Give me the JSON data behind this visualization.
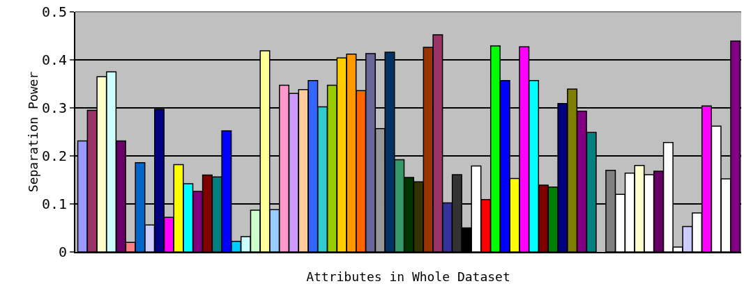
{
  "chart_data": {
    "type": "bar",
    "xlabel": "Attributes in Whole Dataset",
    "ylabel": "Separation Power",
    "categories": [
      null,
      null,
      null,
      null,
      null,
      null,
      null,
      null,
      null,
      null,
      null,
      null,
      null,
      null,
      null,
      null,
      null,
      null,
      null,
      null,
      null,
      null,
      null,
      null,
      null,
      null,
      null,
      null,
      null,
      null,
      null,
      null,
      null,
      null,
      null,
      null,
      null,
      null,
      null,
      null,
      null,
      null,
      null,
      null,
      null,
      null,
      null,
      null,
      null,
      null,
      null,
      null,
      null,
      null,
      null,
      null,
      null,
      null,
      null,
      null,
      null,
      null,
      null,
      null,
      null,
      null,
      null,
      null,
      null
    ],
    "values": [
      0.231,
      0.295,
      0.365,
      0.375,
      0.231,
      0.02,
      0.186,
      0.056,
      0.297,
      0.072,
      0.182,
      0.142,
      0.126,
      0.16,
      0.156,
      0.252,
      0.022,
      0.032,
      0.087,
      0.419,
      0.088,
      0.347,
      0.33,
      0.338,
      0.357,
      0.302,
      0.347,
      0.404,
      0.412,
      0.336,
      0.413,
      0.257,
      0.416,
      0.192,
      0.155,
      0.146,
      0.426,
      0.452,
      0.102,
      0.161,
      0.05,
      0.179,
      0.109,
      0.429,
      0.357,
      0.153,
      0.427,
      0.357,
      0.139,
      0.135,
      0.309,
      0.339,
      0.293,
      0.249,
      null,
      0.17,
      0.12,
      0.164,
      0.18,
      0.161,
      0.168,
      0.228,
      0.01,
      0.053,
      0.081,
      0.304,
      0.262,
      0.152,
      0.439
    ],
    "colors": [
      "#9999ff",
      "#993366",
      "#ffffcc",
      "#ccffff",
      "#660066",
      "#ff8080",
      "#0066cc",
      "#ccccff",
      "#000080",
      "#ff00ff",
      "#ffff00",
      "#00ffff",
      "#800080",
      "#800000",
      "#008080",
      "#0000ff",
      "#00ccff",
      "#ccffff",
      "#ccffcc",
      "#ffff99",
      "#99ccff",
      "#ff99cc",
      "#cc99ff",
      "#ffcc99",
      "#3366ff",
      "#33cccc",
      "#99cc00",
      "#ffcc00",
      "#ff9900",
      "#ff6600",
      "#666699",
      "#969696",
      "#003366",
      "#339966",
      "#003300",
      "#333300",
      "#993300",
      "#993366",
      "#333399",
      "#333333",
      "#000000",
      "#ffffff",
      "#ff0000",
      "#00ff00",
      "#0000ff",
      "#ffff00",
      "#ff00ff",
      "#00ffff",
      "#800000",
      "#008000",
      "#000080",
      "#808000",
      "#800080",
      "#008080",
      "#c0c0c0",
      "#808080",
      "#ffffff",
      "#ffffff",
      "#ffffcc",
      "#ffffff",
      "#660066",
      "#ffffff",
      "#ffffff",
      "#ccccff",
      "#ffffff",
      "#ff00ff",
      "#ffffff",
      "#ffffff",
      "#800080"
    ],
    "ylim": [
      0,
      0.5
    ],
    "yticks": [
      {
        "value": 0,
        "label": "0"
      },
      {
        "value": 0.1,
        "label": "0.1"
      },
      {
        "value": 0.2,
        "label": "0.2"
      },
      {
        "value": 0.3,
        "label": "0.3"
      },
      {
        "value": 0.4,
        "label": "0.4"
      },
      {
        "value": 0.5,
        "label": "0.5"
      }
    ],
    "grid": "y"
  }
}
